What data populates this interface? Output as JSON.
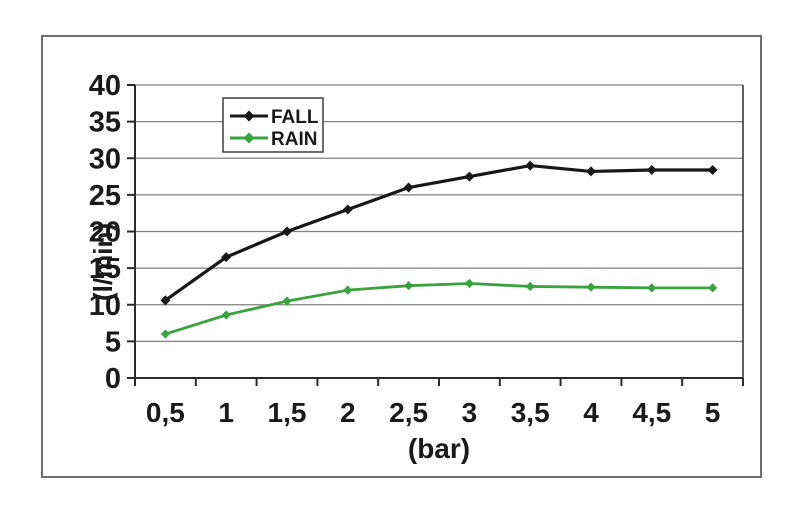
{
  "figure": {
    "background_color": "#ffffff",
    "frame_border_color": "#6e6e6e",
    "plot_background_color": "#ffffff"
  },
  "chart_data": {
    "type": "line",
    "title": "",
    "xlabel": "(bar)",
    "ylabel": "(l/min)",
    "x": [
      0.5,
      1,
      1.5,
      2,
      2.5,
      3,
      3.5,
      4,
      4.5,
      5
    ],
    "x_tick_labels": [
      "0,5",
      "1",
      "1,5",
      "2",
      "2,5",
      "3",
      "3,5",
      "4",
      "4,5",
      "5"
    ],
    "y_ticks": [
      0,
      5,
      10,
      15,
      20,
      25,
      30,
      35,
      40
    ],
    "ylim": [
      0,
      40
    ],
    "grid": "horizontal",
    "gridline_color": "#7f7f7f",
    "axis_color": "#2b2b2b",
    "legend_position": "top-inside",
    "legend_border_color": "#4a4a4a",
    "series": [
      {
        "name": "FALL",
        "color": "#171717",
        "marker": "diamond",
        "values": [
          10.6,
          16.5,
          20.0,
          23.0,
          26.0,
          27.5,
          29.0,
          28.2,
          28.4,
          28.4
        ]
      },
      {
        "name": "RAIN",
        "color": "#3aa23e",
        "marker": "diamond",
        "values": [
          6.0,
          8.6,
          10.5,
          12.0,
          12.6,
          12.9,
          12.5,
          12.4,
          12.3,
          12.3
        ]
      }
    ]
  }
}
